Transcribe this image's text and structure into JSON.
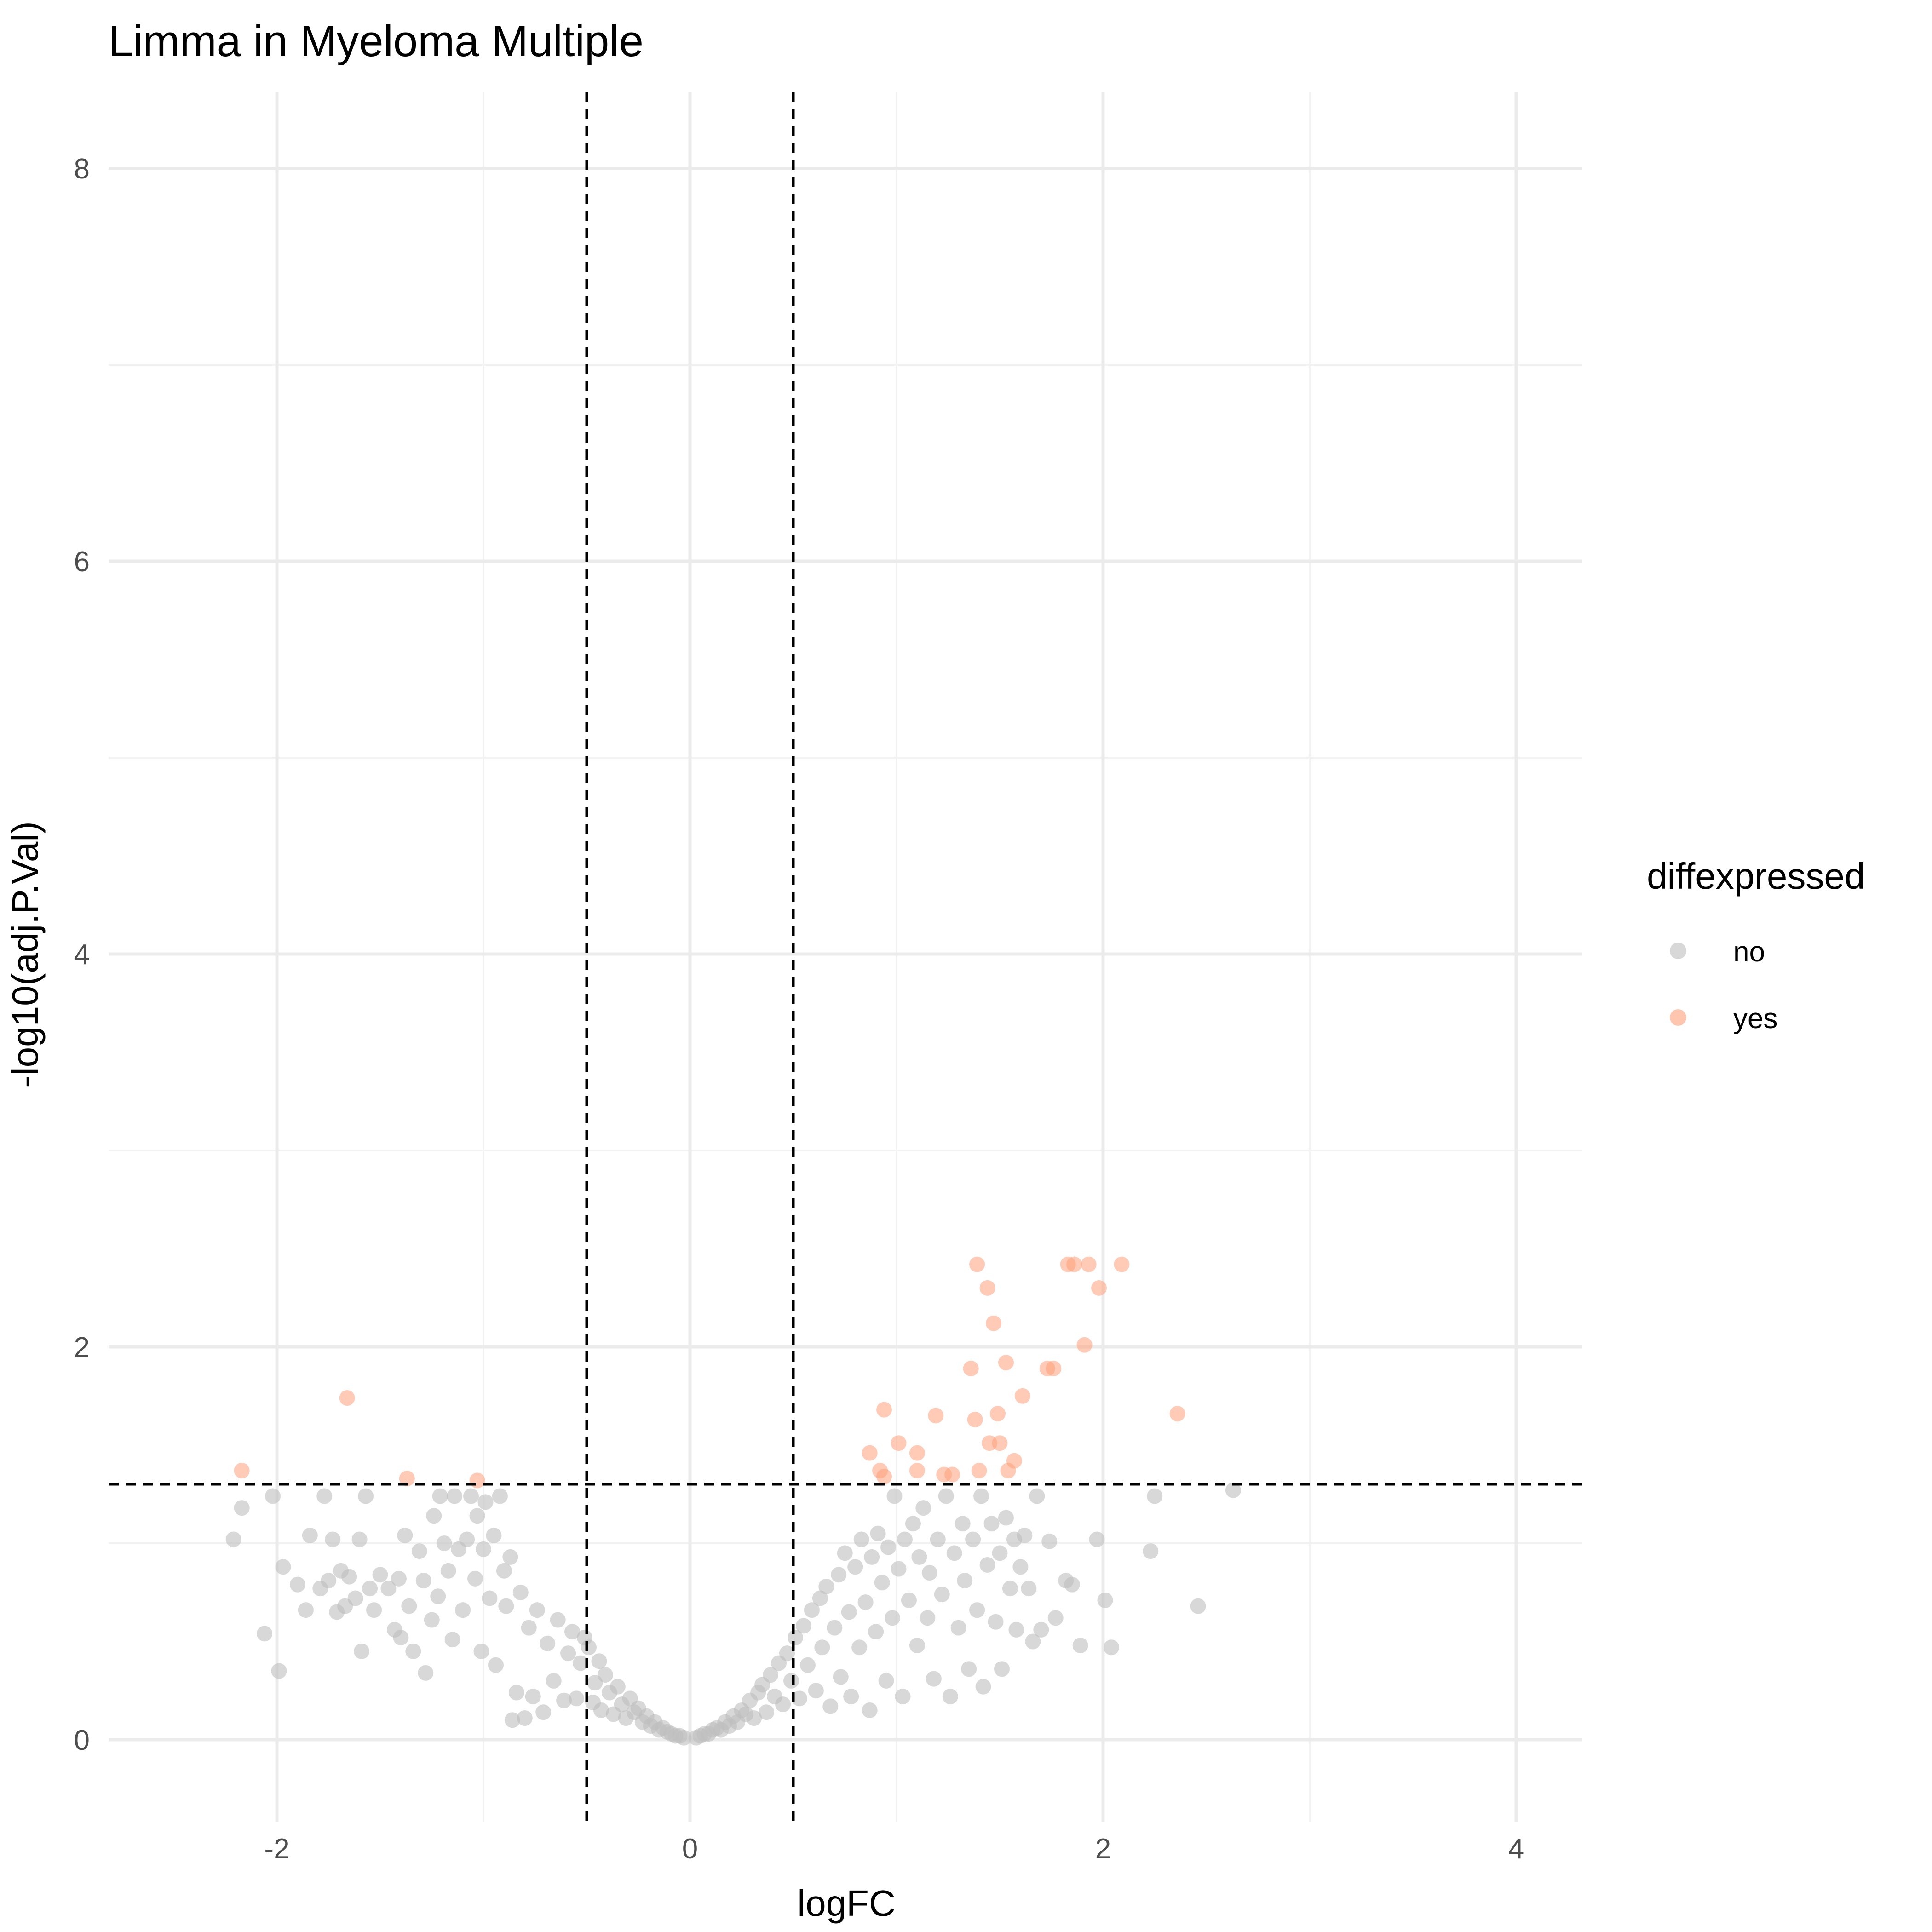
{
  "chart_data": {
    "type": "scatter",
    "title": "Limma in Myeloma Multiple",
    "xlabel": "logFC",
    "ylabel": "-log10(adj.P.Val)",
    "xlim": [
      -2.8,
      4.3
    ],
    "ylim": [
      -0.42,
      8.45
    ],
    "x_ticks": [
      -2,
      0,
      2,
      4
    ],
    "x_tick_labels": [
      "-2",
      "0",
      "2",
      "4"
    ],
    "y_ticks": [
      0,
      2,
      4,
      6,
      8
    ],
    "y_tick_labels": [
      "0",
      "2",
      "4",
      "6",
      "8"
    ],
    "grid": true,
    "background": "minimal",
    "thresholds": {
      "vlines": [
        -0.5,
        0.5
      ],
      "hline": 1.301,
      "line_style": "dashed",
      "line_color": "#000000"
    },
    "legend": {
      "title": "diffexpressed",
      "position": "right",
      "entries": [
        {
          "label": "no",
          "color": "#bebebe"
        },
        {
          "label": "yes",
          "color": "#ffa07a"
        }
      ]
    },
    "series": [
      {
        "name": "yes",
        "color": "#ffa07a",
        "opacity": 0.55,
        "points": [
          [
            -2.17,
            1.37
          ],
          [
            -1.66,
            1.74
          ],
          [
            -1.37,
            1.33
          ],
          [
            -1.03,
            1.32
          ],
          [
            0.87,
            1.46
          ],
          [
            0.92,
            1.37
          ],
          [
            0.94,
            1.34
          ],
          [
            0.94,
            1.68
          ],
          [
            1.01,
            1.51
          ],
          [
            1.1,
            1.46
          ],
          [
            1.1,
            1.37
          ],
          [
            1.19,
            1.65
          ],
          [
            1.23,
            1.35
          ],
          [
            1.27,
            1.35
          ],
          [
            1.36,
            1.89
          ],
          [
            1.38,
            1.63
          ],
          [
            1.39,
            2.42
          ],
          [
            1.4,
            1.37
          ],
          [
            1.44,
            2.3
          ],
          [
            1.45,
            1.51
          ],
          [
            1.47,
            2.12
          ],
          [
            1.49,
            1.66
          ],
          [
            1.5,
            1.51
          ],
          [
            1.53,
            1.92
          ],
          [
            1.54,
            1.37
          ],
          [
            1.57,
            1.42
          ],
          [
            1.61,
            1.75
          ],
          [
            1.73,
            1.89
          ],
          [
            1.76,
            1.89
          ],
          [
            1.83,
            2.42
          ],
          [
            1.86,
            2.42
          ],
          [
            1.91,
            2.01
          ],
          [
            1.93,
            2.42
          ],
          [
            1.98,
            2.3
          ],
          [
            2.09,
            2.42
          ],
          [
            2.36,
            1.66
          ]
        ]
      },
      {
        "name": "no",
        "color": "#bebebe",
        "opacity": 0.6,
        "points": [
          [
            -2.21,
            1.02
          ],
          [
            -2.17,
            1.18
          ],
          [
            -2.06,
            0.54
          ],
          [
            -2.02,
            1.24
          ],
          [
            -1.99,
            0.35
          ],
          [
            -1.97,
            0.88
          ],
          [
            -1.9,
            0.79
          ],
          [
            -1.86,
            0.66
          ],
          [
            -1.84,
            1.04
          ],
          [
            -1.79,
            0.77
          ],
          [
            -1.77,
            1.24
          ],
          [
            -1.75,
            0.81
          ],
          [
            -1.73,
            1.02
          ],
          [
            -1.71,
            0.65
          ],
          [
            -1.69,
            0.86
          ],
          [
            -1.67,
            0.68
          ],
          [
            -1.65,
            0.83
          ],
          [
            -1.62,
            0.72
          ],
          [
            -1.6,
            1.02
          ],
          [
            -1.59,
            0.45
          ],
          [
            -1.57,
            1.24
          ],
          [
            -1.55,
            0.77
          ],
          [
            -1.53,
            0.66
          ],
          [
            -1.5,
            0.84
          ],
          [
            -1.46,
            0.77
          ],
          [
            -1.43,
            0.56
          ],
          [
            -1.41,
            0.82
          ],
          [
            -1.4,
            0.52
          ],
          [
            -1.38,
            1.04
          ],
          [
            -1.36,
            0.68
          ],
          [
            -1.34,
            0.45
          ],
          [
            -1.31,
            0.96
          ],
          [
            -1.29,
            0.81
          ],
          [
            -1.28,
            0.34
          ],
          [
            -1.25,
            0.61
          ],
          [
            -1.24,
            1.14
          ],
          [
            -1.22,
            0.73
          ],
          [
            -1.21,
            1.24
          ],
          [
            -1.19,
            1.0
          ],
          [
            -1.17,
            0.86
          ],
          [
            -1.15,
            0.51
          ],
          [
            -1.14,
            1.24
          ],
          [
            -1.12,
            0.97
          ],
          [
            -1.1,
            0.66
          ],
          [
            -1.08,
            1.02
          ],
          [
            -1.06,
            1.24
          ],
          [
            -1.04,
            0.82
          ],
          [
            -1.03,
            1.14
          ],
          [
            -1.01,
            0.45
          ],
          [
            -1.0,
            0.97
          ],
          [
            -0.99,
            1.21
          ],
          [
            -0.97,
            0.72
          ],
          [
            -0.95,
            1.04
          ],
          [
            -0.94,
            0.38
          ],
          [
            -0.92,
            1.24
          ],
          [
            -0.9,
            0.86
          ],
          [
            -0.89,
            0.68
          ],
          [
            -0.87,
            0.93
          ],
          [
            -0.86,
            0.1
          ],
          [
            -0.84,
            0.24
          ],
          [
            -0.82,
            0.75
          ],
          [
            -0.8,
            0.11
          ],
          [
            -0.78,
            0.57
          ],
          [
            -0.76,
            0.22
          ],
          [
            -0.74,
            0.66
          ],
          [
            -0.71,
            0.14
          ],
          [
            -0.69,
            0.49
          ],
          [
            -0.66,
            0.3
          ],
          [
            -0.64,
            0.61
          ],
          [
            -0.61,
            0.2
          ],
          [
            -0.59,
            0.44
          ],
          [
            -0.57,
            0.55
          ],
          [
            -0.55,
            0.21
          ],
          [
            -0.53,
            0.39
          ],
          [
            -0.51,
            0.52
          ],
          [
            -0.49,
            0.47
          ],
          [
            -0.47,
            0.19
          ],
          [
            -0.46,
            0.29
          ],
          [
            -0.44,
            0.4
          ],
          [
            -0.43,
            0.15
          ],
          [
            -0.41,
            0.33
          ],
          [
            -0.39,
            0.24
          ],
          [
            -0.37,
            0.13
          ],
          [
            -0.35,
            0.27
          ],
          [
            -0.33,
            0.18
          ],
          [
            -0.31,
            0.11
          ],
          [
            -0.29,
            0.21
          ],
          [
            -0.27,
            0.14
          ],
          [
            -0.25,
            0.16
          ],
          [
            -0.23,
            0.09
          ],
          [
            -0.21,
            0.12
          ],
          [
            -0.19,
            0.07
          ],
          [
            -0.17,
            0.09
          ],
          [
            -0.15,
            0.05
          ],
          [
            -0.13,
            0.06
          ],
          [
            -0.11,
            0.04
          ],
          [
            -0.09,
            0.03
          ],
          [
            -0.07,
            0.02
          ],
          [
            -0.05,
            0.02
          ],
          [
            -0.03,
            0.01
          ],
          [
            0.03,
            0.01
          ],
          [
            0.05,
            0.02
          ],
          [
            0.07,
            0.03
          ],
          [
            0.09,
            0.03
          ],
          [
            0.11,
            0.05
          ],
          [
            0.13,
            0.06
          ],
          [
            0.15,
            0.05
          ],
          [
            0.17,
            0.09
          ],
          [
            0.19,
            0.07
          ],
          [
            0.21,
            0.12
          ],
          [
            0.23,
            0.09
          ],
          [
            0.25,
            0.15
          ],
          [
            0.27,
            0.13
          ],
          [
            0.29,
            0.2
          ],
          [
            0.31,
            0.11
          ],
          [
            0.33,
            0.24
          ],
          [
            0.35,
            0.28
          ],
          [
            0.37,
            0.14
          ],
          [
            0.39,
            0.33
          ],
          [
            0.41,
            0.22
          ],
          [
            0.43,
            0.39
          ],
          [
            0.45,
            0.18
          ],
          [
            0.47,
            0.44
          ],
          [
            0.49,
            0.3
          ],
          [
            0.51,
            0.52
          ],
          [
            0.53,
            0.21
          ],
          [
            0.55,
            0.58
          ],
          [
            0.57,
            0.38
          ],
          [
            0.59,
            0.66
          ],
          [
            0.61,
            0.25
          ],
          [
            0.63,
            0.72
          ],
          [
            0.64,
            0.47
          ],
          [
            0.66,
            0.78
          ],
          [
            0.68,
            0.17
          ],
          [
            0.7,
            0.57
          ],
          [
            0.72,
            0.84
          ],
          [
            0.73,
            0.32
          ],
          [
            0.75,
            0.95
          ],
          [
            0.77,
            0.65
          ],
          [
            0.78,
            0.22
          ],
          [
            0.8,
            0.88
          ],
          [
            0.82,
            0.47
          ],
          [
            0.83,
            1.02
          ],
          [
            0.85,
            0.7
          ],
          [
            0.87,
            0.15
          ],
          [
            0.88,
            0.93
          ],
          [
            0.9,
            0.55
          ],
          [
            0.91,
            1.05
          ],
          [
            0.93,
            0.8
          ],
          [
            0.95,
            0.3
          ],
          [
            0.96,
            0.98
          ],
          [
            0.98,
            0.62
          ],
          [
            0.99,
            1.24
          ],
          [
            1.01,
            0.87
          ],
          [
            1.03,
            0.22
          ],
          [
            1.04,
            1.02
          ],
          [
            1.06,
            0.71
          ],
          [
            1.08,
            1.1
          ],
          [
            1.1,
            0.48
          ],
          [
            1.11,
            0.93
          ],
          [
            1.13,
            1.18
          ],
          [
            1.15,
            0.62
          ],
          [
            1.16,
            0.85
          ],
          [
            1.18,
            0.31
          ],
          [
            1.2,
            1.02
          ],
          [
            1.22,
            0.74
          ],
          [
            1.24,
            1.24
          ],
          [
            1.26,
            0.22
          ],
          [
            1.28,
            0.95
          ],
          [
            1.3,
            0.57
          ],
          [
            1.32,
            1.1
          ],
          [
            1.33,
            0.81
          ],
          [
            1.35,
            0.36
          ],
          [
            1.37,
            1.02
          ],
          [
            1.39,
            0.66
          ],
          [
            1.41,
            1.24
          ],
          [
            1.42,
            0.27
          ],
          [
            1.44,
            0.89
          ],
          [
            1.46,
            1.1
          ],
          [
            1.48,
            0.6
          ],
          [
            1.5,
            0.95
          ],
          [
            1.51,
            0.36
          ],
          [
            1.53,
            1.13
          ],
          [
            1.55,
            0.77
          ],
          [
            1.57,
            1.02
          ],
          [
            1.58,
            0.56
          ],
          [
            1.6,
            0.88
          ],
          [
            1.62,
            1.04
          ],
          [
            1.64,
            0.77
          ],
          [
            1.66,
            0.5
          ],
          [
            1.68,
            1.24
          ],
          [
            1.7,
            0.56
          ],
          [
            1.74,
            1.01
          ],
          [
            1.77,
            0.62
          ],
          [
            1.82,
            0.81
          ],
          [
            1.85,
            0.79
          ],
          [
            1.89,
            0.48
          ],
          [
            1.97,
            1.02
          ],
          [
            2.01,
            0.71
          ],
          [
            2.04,
            0.47
          ],
          [
            2.23,
            0.96
          ],
          [
            2.25,
            1.24
          ],
          [
            2.46,
            0.68
          ],
          [
            2.63,
            1.27
          ]
        ]
      }
    ]
  }
}
